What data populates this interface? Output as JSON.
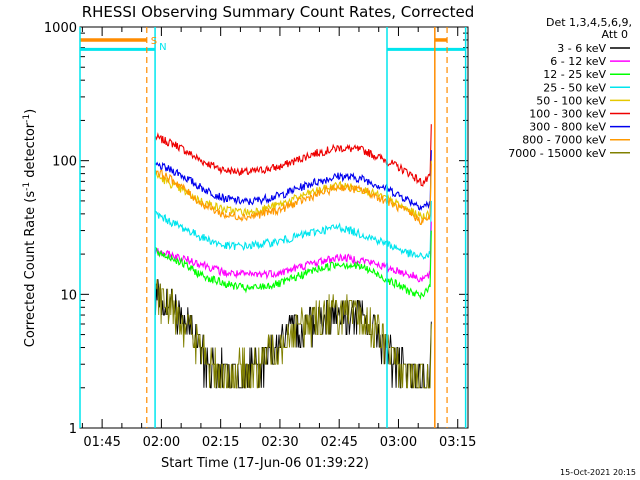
{
  "chart_data": {
    "type": "line",
    "title": "RHESSI Observing Summary Count Rates, Corrected",
    "xlabel": "Start Time (17-Jun-06 01:39:22)",
    "ylabel_main": "Corrected Count Rate (s",
    "ylabel_sup1": "-1",
    "ylabel_mid": " detector",
    "ylabel_sup2": "-1",
    "ylabel_end": ")",
    "yscale": "log",
    "ylim": [
      1,
      1000
    ],
    "y_ticks": [
      {
        "v": 1,
        "label": "1"
      },
      {
        "v": 10,
        "label": "10"
      },
      {
        "v": 100,
        "label": "100"
      },
      {
        "v": 1000,
        "label": "1000"
      }
    ],
    "xlim_min": [
      99.4,
      197.6
    ],
    "x_ticks": [
      {
        "t": 105,
        "label": "01:45"
      },
      {
        "t": 120,
        "label": "02:00"
      },
      {
        "t": 135,
        "label": "02:15"
      },
      {
        "t": 150,
        "label": "02:30"
      },
      {
        "t": 165,
        "label": "02:45"
      },
      {
        "t": 180,
        "label": "03:00"
      },
      {
        "t": 195,
        "label": "03:15"
      }
    ],
    "legend_header": [
      "Det 1,3,4,5,6,9,",
      "Att 0"
    ],
    "series": [
      {
        "name": "3 - 6 keV",
        "color": "#000000"
      },
      {
        "name": "6 - 12 keV",
        "color": "#ff00ff"
      },
      {
        "name": "12 - 25 keV",
        "color": "#00ff00"
      },
      {
        "name": "25 - 50 keV",
        "color": "#00e5ee"
      },
      {
        "name": "50 - 100 keV",
        "color": "#e5c800"
      },
      {
        "name": "100 - 300 keV",
        "color": "#ee0000"
      },
      {
        "name": "300 - 800 keV",
        "color": "#0000ee"
      },
      {
        "name": "800 - 7000 keV",
        "color": "#ff9900"
      },
      {
        "name": "7000 - 15000 keV",
        "color": "#808000"
      }
    ],
    "curves": [
      {
        "color": "#ee0000",
        "pts": [
          [
            118.5,
            150
          ],
          [
            124,
            130
          ],
          [
            130,
            100
          ],
          [
            136,
            85
          ],
          [
            142,
            82
          ],
          [
            150,
            90
          ],
          [
            158,
            112
          ],
          [
            165,
            125
          ],
          [
            171,
            120
          ],
          [
            177,
            100
          ],
          [
            183,
            80
          ],
          [
            186,
            68
          ],
          [
            188,
            75
          ]
        ]
      },
      {
        "color": "#0000ee",
        "pts": [
          [
            118.5,
            93
          ],
          [
            124,
            82
          ],
          [
            130,
            63
          ],
          [
            136,
            52
          ],
          [
            142,
            49
          ],
          [
            150,
            55
          ],
          [
            158,
            68
          ],
          [
            165,
            77
          ],
          [
            171,
            73
          ],
          [
            177,
            62
          ],
          [
            183,
            50
          ],
          [
            186,
            45
          ],
          [
            188,
            48
          ]
        ]
      },
      {
        "color": "#e5c800",
        "pts": [
          [
            118.5,
            78
          ],
          [
            124,
            63
          ],
          [
            130,
            50
          ],
          [
            136,
            43
          ],
          [
            142,
            41
          ],
          [
            150,
            47
          ],
          [
            158,
            58
          ],
          [
            165,
            66
          ],
          [
            171,
            61
          ],
          [
            177,
            52
          ],
          [
            183,
            42
          ],
          [
            186,
            38
          ],
          [
            188,
            40
          ]
        ]
      },
      {
        "color": "#ff9900",
        "pts": [
          [
            118.5,
            85
          ],
          [
            124,
            68
          ],
          [
            130,
            48
          ],
          [
            136,
            39
          ],
          [
            142,
            38
          ],
          [
            150,
            43
          ],
          [
            158,
            54
          ],
          [
            165,
            64
          ],
          [
            171,
            60
          ],
          [
            177,
            50
          ],
          [
            183,
            40
          ],
          [
            186,
            35
          ],
          [
            188,
            38
          ]
        ]
      },
      {
        "color": "#00e5ee",
        "pts": [
          [
            118.5,
            40
          ],
          [
            124,
            33
          ],
          [
            130,
            27
          ],
          [
            136,
            23
          ],
          [
            142,
            23
          ],
          [
            150,
            25
          ],
          [
            158,
            29
          ],
          [
            165,
            32
          ],
          [
            171,
            28
          ],
          [
            177,
            24
          ],
          [
            183,
            20
          ],
          [
            186,
            19
          ],
          [
            188,
            20
          ]
        ]
      },
      {
        "color": "#ff00ff",
        "pts": [
          [
            118.5,
            21
          ],
          [
            124,
            19
          ],
          [
            130,
            17
          ],
          [
            136,
            14.5
          ],
          [
            142,
            14
          ],
          [
            150,
            14.5
          ],
          [
            158,
            17
          ],
          [
            165,
            19
          ],
          [
            171,
            18
          ],
          [
            177,
            16
          ],
          [
            183,
            14
          ],
          [
            186,
            13
          ],
          [
            188,
            14
          ]
        ]
      },
      {
        "color": "#00ff00",
        "pts": [
          [
            118.5,
            21
          ],
          [
            124,
            18
          ],
          [
            130,
            14
          ],
          [
            136,
            12
          ],
          [
            142,
            11
          ],
          [
            150,
            12
          ],
          [
            158,
            15
          ],
          [
            165,
            17
          ],
          [
            171,
            16
          ],
          [
            177,
            13
          ],
          [
            183,
            10.5
          ],
          [
            186,
            9.5
          ],
          [
            188,
            12
          ]
        ]
      },
      {
        "color": "#000000",
        "pts": [
          [
            118.5,
            10
          ],
          [
            124,
            8
          ],
          [
            128,
            5
          ],
          [
            132,
            3
          ],
          [
            138,
            2.5
          ],
          [
            144,
            2.8
          ],
          [
            148,
            4
          ],
          [
            154,
            5.5
          ],
          [
            162,
            7.5
          ],
          [
            170,
            7
          ],
          [
            175,
            5
          ],
          [
            180,
            3
          ],
          [
            186,
            2.2
          ],
          [
            188,
            2.5
          ]
        ]
      },
      {
        "color": "#808000",
        "pts": [
          [
            118.5,
            9.5
          ],
          [
            124,
            7.5
          ],
          [
            128,
            5
          ],
          [
            132,
            3
          ],
          [
            138,
            2.7
          ],
          [
            144,
            2.8
          ],
          [
            148,
            4
          ],
          [
            154,
            5.5
          ],
          [
            162,
            7.5
          ],
          [
            170,
            7
          ],
          [
            175,
            5
          ],
          [
            180,
            3
          ],
          [
            186,
            2.3
          ],
          [
            188,
            2.4
          ]
        ]
      }
    ],
    "markers": {
      "eclipse_line_orange": {
        "y": 800,
        "spans": [
          [
            99.4,
            116.3
          ],
          [
            189.2,
            192.3
          ]
        ]
      },
      "eclipse_line_cyan": {
        "y": 680,
        "spans": [
          [
            99.4,
            118.4
          ],
          [
            177.1,
            197.0
          ]
        ]
      },
      "vlines_cyan": [
        99.4,
        118.4,
        177.1,
        197.0
      ],
      "vlines_orange_dashed": [
        116.3,
        192.3
      ],
      "vlines_orange_dashed_light": [
        189.2
      ],
      "label_S": "S",
      "label_N": "N"
    },
    "footer_date": "15-Oct-2021 20:15"
  }
}
